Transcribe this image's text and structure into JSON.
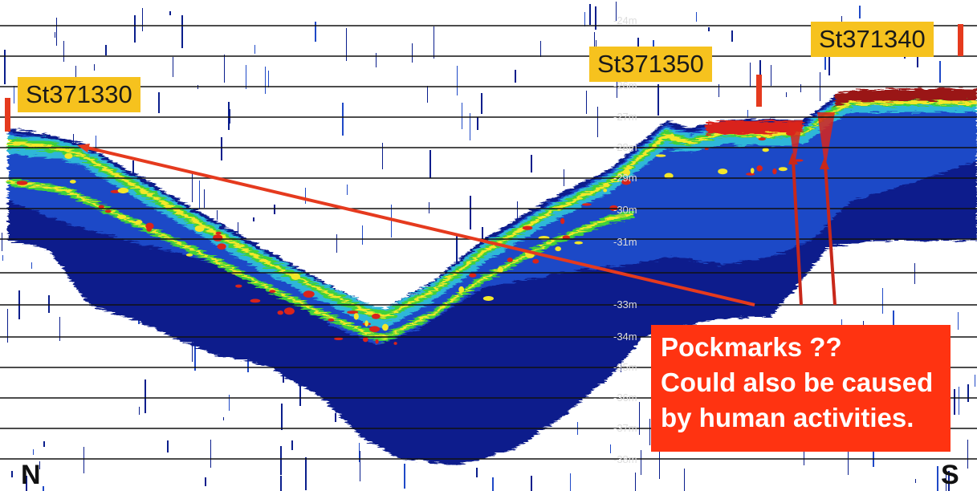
{
  "image": {
    "subject": "echosounder profile",
    "colors": {
      "background": "#ffffff",
      "gridline": "#111111",
      "deep_blue": "#0a1e8c",
      "mid_blue": "#1f49c7",
      "cyan": "#2fb7d8",
      "green": "#3fd13a",
      "yellow": "#f3e72a",
      "red": "#d9241b",
      "dark_red": "#9a1414",
      "label_bg": "#f6c21e",
      "callout_bg": "#ff3311",
      "arrow": "#e53a1e"
    }
  },
  "stations": {
    "left": "St371330",
    "middle": "St371350",
    "right": "St371340"
  },
  "directions": {
    "north": "N",
    "south": "S"
  },
  "callout": {
    "line1": "Pockmarks ??",
    "line2": "Could also be caused",
    "line3": "by human activities."
  },
  "depth_ticks": [
    "-24m",
    "-26m",
    "-27m",
    "-28m",
    "-29m",
    "-30m",
    "-31m",
    "-33m",
    "-34m",
    "-35m",
    "-36m",
    "-37m",
    "-38m"
  ]
}
